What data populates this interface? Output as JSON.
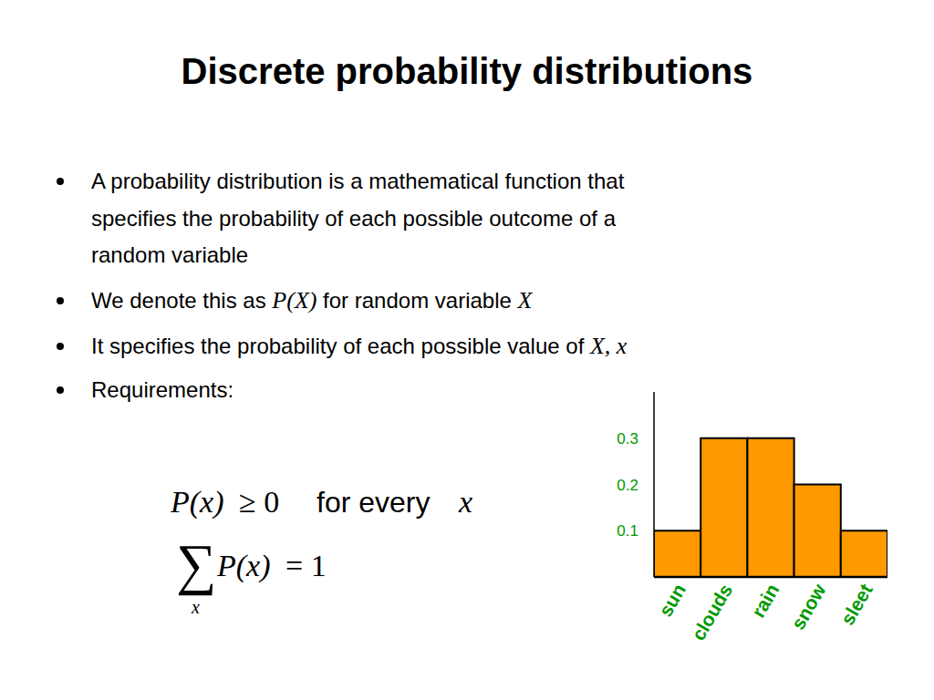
{
  "slide": {
    "title": "Discrete probability distributions",
    "bullets": [
      {
        "lines": [
          "A probability distribution is a mathematical function that",
          "specifies the probability of each possible outcome of a",
          "random variable"
        ]
      },
      {
        "parts": [
          "We denote this as ",
          "P(X)",
          " for random variable ",
          "X"
        ]
      },
      {
        "parts": [
          "It specifies the probability of each possible value of ",
          "X, x"
        ]
      },
      {
        "parts": [
          "Requirements:"
        ]
      }
    ],
    "requirements": [
      {
        "parts": [
          "P(x)",
          "≥ 0",
          "for every",
          "x"
        ]
      },
      {
        "sum": "∑",
        "index": "x",
        "expr": [
          "P(x)",
          "= 1"
        ]
      }
    ]
  },
  "chart_data": {
    "type": "bar",
    "categories": [
      "sun",
      "clouds",
      "rain",
      "snow",
      "sleet"
    ],
    "values": [
      0.1,
      0.3,
      0.3,
      0.2,
      0.1
    ],
    "color": "#ff9900",
    "ylim": [
      0,
      0.4
    ],
    "yticks": [
      0.1,
      0.2,
      0.3
    ],
    "grid": false
  }
}
